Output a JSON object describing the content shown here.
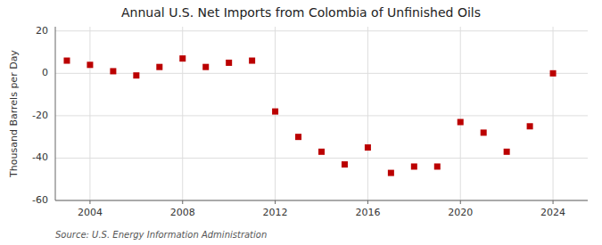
{
  "chart_data": {
    "type": "scatter",
    "title": "Annual U.S. Net Imports from Colombia of Unfinished Oils",
    "y_label": "Thousand Barrels per Day",
    "source": "Source: U.S. Energy Information Administration",
    "x": [
      2003,
      2004,
      2005,
      2006,
      2007,
      2008,
      2009,
      2010,
      2011,
      2012,
      2013,
      2014,
      2015,
      2016,
      2017,
      2018,
      2019,
      2020,
      2021,
      2022,
      2023,
      2024
    ],
    "values": [
      6,
      4,
      1,
      -1,
      3,
      7,
      3,
      5,
      6,
      -18,
      -30,
      -37,
      -43,
      -35,
      -47,
      -44,
      -44,
      -23,
      -28,
      -37,
      -25,
      0
    ],
    "xlim": [
      2002.5,
      2025.5
    ],
    "ylim": [
      -60,
      22
    ],
    "xticks": [
      2004,
      2008,
      2012,
      2016,
      2020,
      2024
    ],
    "yticks": [
      -60,
      -40,
      -20,
      0,
      20
    ],
    "color": "#bb0000",
    "marker": "square",
    "grid": true
  }
}
